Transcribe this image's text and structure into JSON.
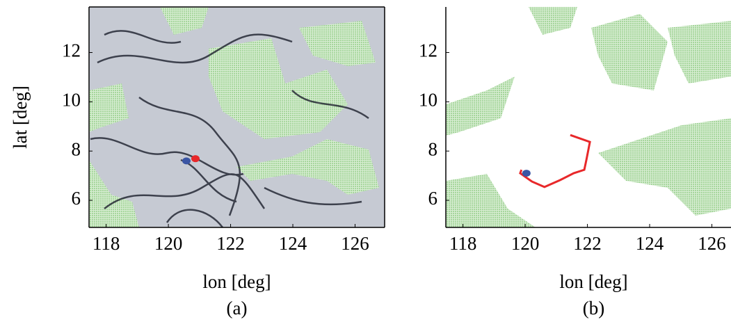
{
  "chart_data": [
    {
      "type": "map",
      "title": "(a)",
      "xlabel": "lon [deg]",
      "ylabel": "lat [deg]",
      "xlim": [
        117.45,
        126.95
      ],
      "ylim": [
        4.9,
        13.85
      ],
      "xticks": [
        118,
        120,
        122,
        124,
        126
      ],
      "yticks": [
        6,
        8,
        10,
        12
      ],
      "box": true,
      "points": [
        {
          "x": 120.87,
          "y": 7.69,
          "color": "#e8282a"
        },
        {
          "x": 120.58,
          "y": 7.6,
          "color": "#3a55a4"
        }
      ]
    },
    {
      "type": "map",
      "title": "(b)",
      "xlabel": "lon [deg]",
      "xlim": [
        117.45,
        126.95
      ],
      "ylim": [
        4.9,
        13.85
      ],
      "xticks": [
        118,
        120,
        122,
        124,
        126
      ],
      "yticks": [
        6,
        8,
        10,
        12
      ],
      "box": false,
      "points": [
        {
          "x": 120.04,
          "y": 7.1,
          "color": "#3a55a4"
        }
      ],
      "line": {
        "color": "#e8282a",
        "x": [
          121.45,
          122.08,
          121.97,
          121.9,
          121.56,
          121.12,
          120.62,
          120.22,
          119.84,
          119.88
        ],
        "y": [
          8.65,
          8.37,
          7.66,
          7.24,
          7.1,
          6.82,
          6.54,
          6.76,
          7.1,
          7.24
        ]
      }
    }
  ]
}
